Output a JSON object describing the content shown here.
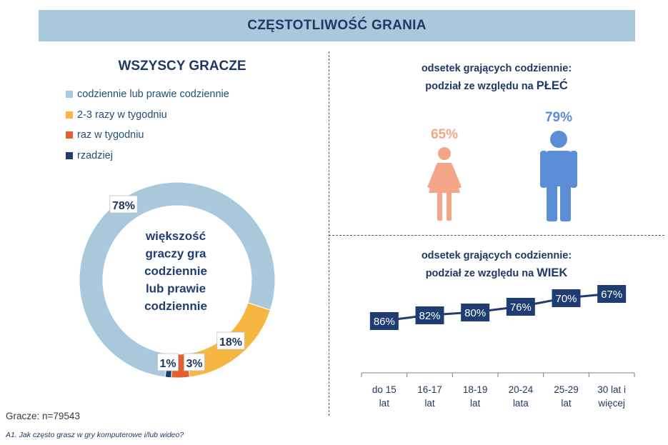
{
  "banner": {
    "title": "CZĘSTOTLIWOŚĆ GRANIA"
  },
  "left_title": "WSZYSCY GRACZE",
  "donut_center": [
    "większość",
    "graczy gra",
    "codziennie",
    "lub prawie",
    "codziennie"
  ],
  "gender": {
    "title_line1": "odsetek grających codziennie:",
    "title_line2_prefix": "podział ze względu na",
    "title_line2_key": "PŁEĆ",
    "female_color": "#f4a58a",
    "male_color": "#5b8ed6",
    "female_icon": "female-icon",
    "male_icon": "male-icon"
  },
  "age": {
    "title_line1": "odsetek grających codziennie:",
    "title_line2_prefix": "podział ze względu na",
    "title_line2_key": "WIEK",
    "marker_color": "#1f3d73"
  },
  "footnote": {
    "sample": "Gracze: n=79543",
    "question": "A1. Jak często grasz w gry komputerowe i/lub wideo?"
  },
  "chart_data": [
    {
      "type": "pie",
      "title": "WSZYSCY GRACZE",
      "donut": true,
      "legend_placement": "top-left",
      "categories": [
        "codziennie lub prawie codziennie",
        "2-3 razy w tygodniu",
        "raz w tygodniu",
        "rzadziej"
      ],
      "values": [
        78,
        18,
        3,
        1
      ],
      "labels": [
        "78%",
        "18%",
        "3%",
        "1%"
      ],
      "colors": [
        "#a9c8dc",
        "#f7b541",
        "#e35f32",
        "#1f3d73"
      ]
    },
    {
      "type": "bar",
      "title": "odsetek grających codziennie: podział ze względu na PŁEĆ",
      "categories": [
        "kobiety",
        "mężczyźni"
      ],
      "values": [
        65,
        79
      ],
      "labels": [
        "65%",
        "79%"
      ],
      "colors": [
        "#f4a58a",
        "#5b8ed6"
      ]
    },
    {
      "type": "line",
      "title": "odsetek grających codziennie: podział ze względu na WIEK",
      "categories": [
        [
          "do 15",
          "lat"
        ],
        [
          "16-17",
          "lat"
        ],
        [
          "18-19",
          "lat"
        ],
        [
          "20-24",
          "lata"
        ],
        [
          "25-29",
          "lat"
        ],
        [
          "30 lat i",
          "więcej"
        ]
      ],
      "values": [
        86,
        82,
        80,
        76,
        70,
        67
      ],
      "labels": [
        "86%",
        "82%",
        "80%",
        "76%",
        "70%",
        "67%"
      ],
      "grid": false
    }
  ]
}
